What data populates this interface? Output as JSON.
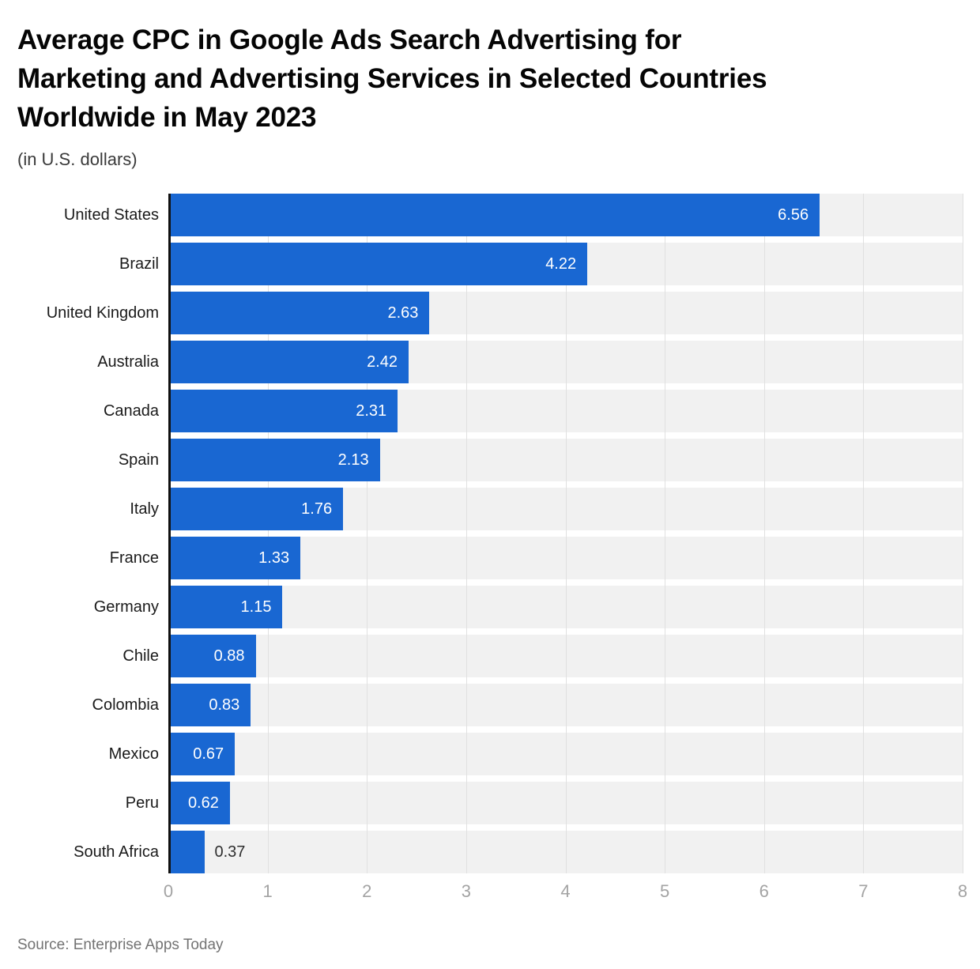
{
  "header": {
    "title_lines": [
      "Average CPC in Google Ads Search Advertising for",
      "Marketing and Advertising Services in Selected Countries",
      "Worldwide in May 2023"
    ],
    "subtitle": "(in U.S. dollars)"
  },
  "chart_data": {
    "type": "bar",
    "orientation": "horizontal",
    "title": "Average CPC in Google Ads Search Advertising for Marketing and Advertising Services in Selected Countries Worldwide in May 2023",
    "subtitle": "(in U.S. dollars)",
    "categories": [
      "United States",
      "Brazil",
      "United Kingdom",
      "Australia",
      "Canada",
      "Spain",
      "Italy",
      "France",
      "Germany",
      "Chile",
      "Colombia",
      "Mexico",
      "Peru",
      "South Africa"
    ],
    "values": [
      6.56,
      4.22,
      2.63,
      2.42,
      2.31,
      2.13,
      1.76,
      1.33,
      1.15,
      0.88,
      0.83,
      0.67,
      0.62,
      0.37
    ],
    "value_labels": [
      "6.56",
      "4.22",
      "2.63",
      "2.42",
      "2.31",
      "2.13",
      "1.76",
      "1.33",
      "1.15",
      "0.88",
      "0.83",
      "0.67",
      "0.62",
      "0.37"
    ],
    "xlabel": "",
    "ylabel": "",
    "xlim": [
      0,
      8
    ],
    "x_ticks": [
      0,
      1,
      2,
      3,
      4,
      5,
      6,
      7,
      8
    ],
    "grid": "vertical gridlines at integer ticks",
    "legend": "none",
    "bar_color": "#1967d2",
    "band_color": "#f1f1f1",
    "gridline_color": "#e0e0e0",
    "axis_line_color": "#111111",
    "inside_label_color": "#ffffff",
    "outside_label_color": "#2e2e2e",
    "outside_label_threshold": 0.5
  },
  "footer": {
    "source": "Source: Enterprise Apps Today"
  }
}
